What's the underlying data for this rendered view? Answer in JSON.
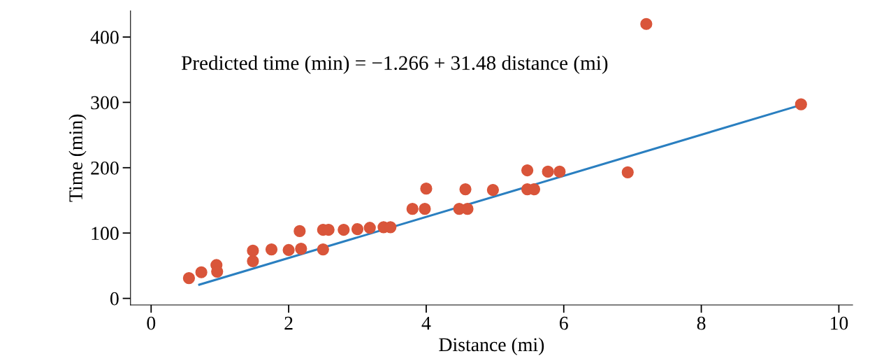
{
  "chart_data": {
    "type": "scatter",
    "xlabel": "Distance (mi)",
    "ylabel": "Time (min)",
    "annotations": [
      "Predicted time (min) = −1.266 + 31.48 distance (mi)"
    ],
    "xlim": [
      -0.3,
      10.2
    ],
    "ylim": [
      -10,
      440
    ],
    "xticks": [
      0,
      2,
      4,
      6,
      8,
      10
    ],
    "yticks": [
      0,
      100,
      200,
      300,
      400
    ],
    "grid": false,
    "series": [
      {
        "marker": "circle",
        "color": "#d9553a",
        "x": [
          0.55,
          0.73,
          0.95,
          0.96,
          1.48,
          1.48,
          1.75,
          2.0,
          2.18,
          2.16,
          2.5,
          2.5,
          2.58,
          2.8,
          3.0,
          3.18,
          3.38,
          3.48,
          3.8,
          3.98,
          4.0,
          4.48,
          4.6,
          4.57,
          4.97,
          5.47,
          5.57,
          5.47,
          5.77,
          5.94,
          6.93,
          9.45,
          7.2
        ],
        "values": [
          31,
          40,
          51,
          41,
          57,
          73,
          75,
          74,
          76,
          103,
          75,
          105,
          105,
          105,
          106,
          108,
          109,
          109,
          137,
          137,
          168,
          137,
          137,
          167,
          166,
          167,
          167,
          196,
          194,
          194,
          193,
          297,
          420
        ]
      },
      {
        "type": "line",
        "color": "#2a7fc0",
        "x": [
          0.7,
          9.45
        ],
        "values": [
          21,
          296
        ]
      }
    ]
  }
}
